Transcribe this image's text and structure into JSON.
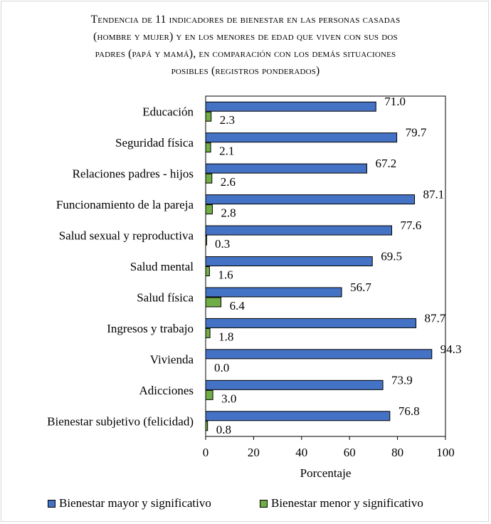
{
  "chart_data": {
    "type": "bar",
    "orientation": "horizontal",
    "title_lines": [
      "Tendencia de 11 indicadores de bienestar en las personas casadas",
      "(hombre y mujer) y en los menores de edad que viven con sus dos",
      "padres (papá y mamá), en comparación con los demás situaciones",
      "posibles  (registros ponderados)"
    ],
    "categories": [
      "Educación",
      "Seguridad física",
      "Relaciones padres - hijos",
      "Funcionamiento de la pareja",
      "Salud sexual y reproductiva",
      "Salud mental",
      "Salud física",
      "Ingresos y trabajo",
      "Vivienda",
      "Adicciones",
      "Bienestar subjetivo (felicidad)"
    ],
    "series": [
      {
        "name": "Bienestar mayor y significativo",
        "color": "#4472c4",
        "values": [
          71.0,
          79.7,
          67.2,
          87.1,
          77.6,
          69.5,
          56.7,
          87.7,
          94.3,
          73.9,
          76.8
        ],
        "labels": [
          "71.0",
          "79.7",
          "67.2",
          "87.1",
          "77.6",
          "69.5",
          "56.7",
          "87.7",
          "94.3",
          "73.9",
          "76.8"
        ]
      },
      {
        "name": "Bienestar menor y significativo",
        "color": "#70ad47",
        "values": [
          2.3,
          2.1,
          2.6,
          2.8,
          0.3,
          1.6,
          6.4,
          1.8,
          0.0,
          3.0,
          0.8
        ],
        "labels": [
          "2.3",
          "2.1",
          "2.6",
          "2.8",
          "0.3",
          "1.6",
          "6.4",
          "1.8",
          "0.0",
          "3.0",
          "0.8"
        ]
      }
    ],
    "xlim": [
      0,
      100
    ],
    "xticks": [
      0,
      20,
      40,
      60,
      80,
      100
    ],
    "xtick_labels": [
      "0",
      "20",
      "40",
      "60",
      "80",
      "100"
    ],
    "xlabel": "Porcentaje",
    "ylabel": "",
    "legend_position": "bottom"
  }
}
